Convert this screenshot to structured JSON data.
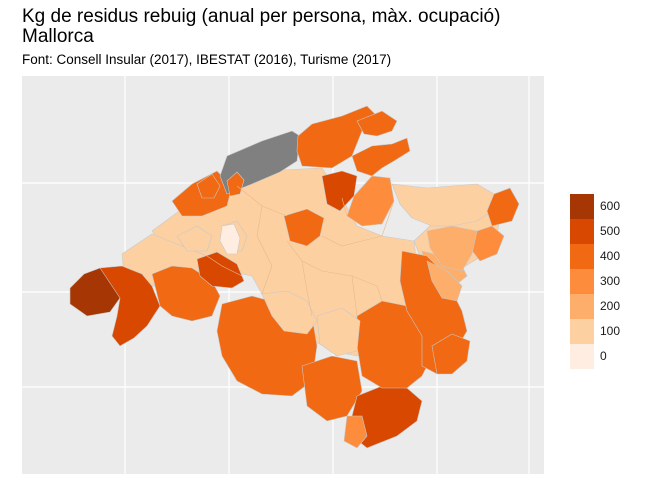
{
  "header": {
    "title_line1": "Kg de residus rebuig (anual per persona, màx. ocupació)",
    "title_line2": "Mallorca",
    "subtitle": "Font: Consell Insular (2017), IBESTAT (2016), Turisme (2017)"
  },
  "legend": {
    "items": [
      {
        "label": "600",
        "color": "#a63603"
      },
      {
        "label": "500",
        "color": "#d94801"
      },
      {
        "label": "400",
        "color": "#f16913"
      },
      {
        "label": "300",
        "color": "#fd8d3c"
      },
      {
        "label": "200",
        "color": "#fdae6b"
      },
      {
        "label": "100",
        "color": "#fdd0a2"
      },
      {
        "label": "0",
        "color": "#feede0"
      }
    ]
  },
  "colors": {
    "panel_background": "#ebebeb",
    "grid": "#ffffff",
    "missing": "#808080",
    "border": "#c8c8c8"
  }
}
